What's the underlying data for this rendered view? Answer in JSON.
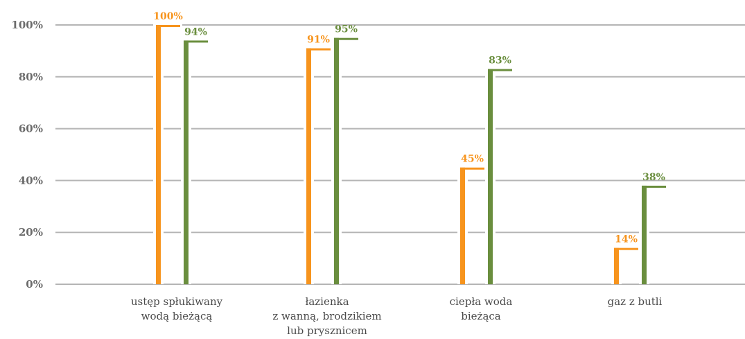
{
  "chart_data": {
    "type": "bar",
    "categories": [
      [
        "ustęp spłukiwany",
        "wodą bieżącą"
      ],
      [
        "łazienka",
        "z wanną, brodzikiem",
        "lub prysznicem"
      ],
      [
        "ciepła woda",
        "bieżąca"
      ],
      [
        "gaz z butli"
      ]
    ],
    "series": [
      {
        "values": [
          100,
          91,
          45,
          14
        ],
        "labels": [
          "100%",
          "91%",
          "45%",
          "14%"
        ],
        "color": "#F7941D"
      },
      {
        "values": [
          94,
          95,
          83,
          38
        ],
        "labels": [
          "94%",
          "95%",
          "83%",
          "38%"
        ],
        "color": "#6A8E3E"
      }
    ],
    "yticks": [
      "0%",
      "20%",
      "40%",
      "60%",
      "80%",
      "100%"
    ],
    "ylim": [
      0,
      100
    ],
    "grid": true,
    "grid_color": "#b5b5b5",
    "xlabel": "",
    "ylabel": "",
    "title": ""
  }
}
